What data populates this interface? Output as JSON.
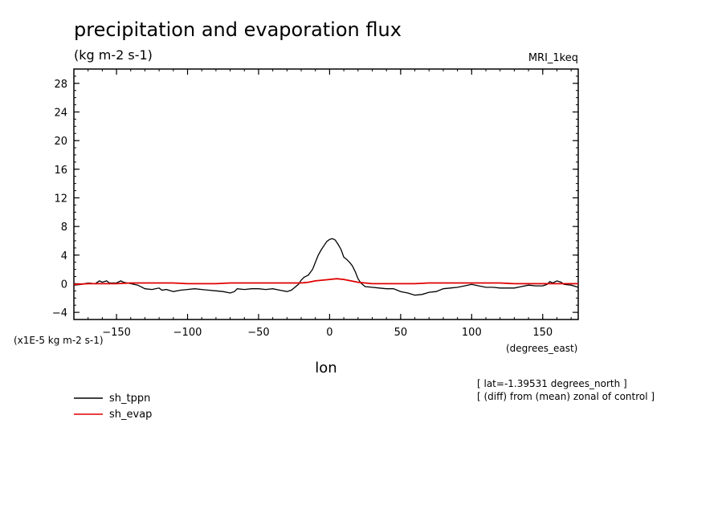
{
  "chart_data": {
    "type": "line",
    "title": "precipitation and evaporation flux",
    "subtitle": "(kg m-2 s-1)",
    "dataset_label": "MRI_1keq",
    "xlabel": "lon",
    "xunits": "(degrees_east)",
    "yunits": "(x1E-5 kg m-2 s-1)",
    "xlim": [
      -180,
      175
    ],
    "ylim": [
      -5,
      30
    ],
    "xticks": [
      -150,
      -100,
      -50,
      0,
      50,
      100,
      150
    ],
    "yticks": [
      -4,
      0,
      4,
      8,
      12,
      16,
      20,
      24,
      28
    ],
    "grid": false,
    "legend_position": "bottom-left",
    "notes": [
      "[ lat=-1.39531 degrees_north ]",
      "[ (diff) from (mean) zonal of control ]"
    ],
    "series": [
      {
        "name": "sh_tppn",
        "color": "#000000",
        "points": [
          [
            -180,
            -0.2
          ],
          [
            -175,
            -0.1
          ],
          [
            -170,
            0.1
          ],
          [
            -165,
            0.0
          ],
          [
            -162,
            0.4
          ],
          [
            -160,
            0.2
          ],
          [
            -157,
            0.4
          ],
          [
            -155,
            0.1
          ],
          [
            -150,
            0.1
          ],
          [
            -147,
            0.4
          ],
          [
            -145,
            0.2
          ],
          [
            -140,
            0.0
          ],
          [
            -135,
            -0.2
          ],
          [
            -130,
            -0.7
          ],
          [
            -125,
            -0.8
          ],
          [
            -120,
            -0.6
          ],
          [
            -118,
            -0.9
          ],
          [
            -115,
            -0.8
          ],
          [
            -110,
            -1.1
          ],
          [
            -105,
            -0.9
          ],
          [
            -100,
            -0.8
          ],
          [
            -95,
            -0.7
          ],
          [
            -90,
            -0.8
          ],
          [
            -85,
            -0.9
          ],
          [
            -80,
            -1.0
          ],
          [
            -75,
            -1.1
          ],
          [
            -70,
            -1.3
          ],
          [
            -67,
            -1.1
          ],
          [
            -65,
            -0.7
          ],
          [
            -60,
            -0.8
          ],
          [
            -55,
            -0.7
          ],
          [
            -50,
            -0.7
          ],
          [
            -45,
            -0.8
          ],
          [
            -40,
            -0.7
          ],
          [
            -35,
            -0.9
          ],
          [
            -30,
            -1.1
          ],
          [
            -27,
            -0.9
          ],
          [
            -25,
            -0.6
          ],
          [
            -22,
            -0.1
          ],
          [
            -20,
            0.5
          ],
          [
            -18,
            0.9
          ],
          [
            -15,
            1.2
          ],
          [
            -12,
            2.0
          ],
          [
            -10,
            3.0
          ],
          [
            -8,
            4.0
          ],
          [
            -6,
            4.7
          ],
          [
            -4,
            5.3
          ],
          [
            -2,
            5.9
          ],
          [
            0,
            6.2
          ],
          [
            2,
            6.3
          ],
          [
            4,
            6.1
          ],
          [
            6,
            5.5
          ],
          [
            8,
            4.8
          ],
          [
            10,
            3.7
          ],
          [
            12,
            3.4
          ],
          [
            14,
            3.0
          ],
          [
            16,
            2.5
          ],
          [
            18,
            1.7
          ],
          [
            20,
            0.7
          ],
          [
            22,
            0.1
          ],
          [
            25,
            -0.4
          ],
          [
            30,
            -0.5
          ],
          [
            35,
            -0.6
          ],
          [
            40,
            -0.7
          ],
          [
            45,
            -0.7
          ],
          [
            50,
            -1.1
          ],
          [
            55,
            -1.3
          ],
          [
            60,
            -1.6
          ],
          [
            65,
            -1.5
          ],
          [
            70,
            -1.2
          ],
          [
            75,
            -1.1
          ],
          [
            80,
            -0.7
          ],
          [
            85,
            -0.6
          ],
          [
            90,
            -0.5
          ],
          [
            95,
            -0.3
          ],
          [
            100,
            -0.1
          ],
          [
            105,
            -0.3
          ],
          [
            110,
            -0.5
          ],
          [
            115,
            -0.5
          ],
          [
            120,
            -0.6
          ],
          [
            125,
            -0.6
          ],
          [
            130,
            -0.6
          ],
          [
            135,
            -0.4
          ],
          [
            140,
            -0.2
          ],
          [
            145,
            -0.3
          ],
          [
            150,
            -0.3
          ],
          [
            153,
            -0.1
          ],
          [
            155,
            0.3
          ],
          [
            157,
            0.1
          ],
          [
            160,
            0.4
          ],
          [
            163,
            0.2
          ],
          [
            165,
            -0.1
          ],
          [
            170,
            -0.2
          ],
          [
            175,
            -0.5
          ]
        ]
      },
      {
        "name": "sh_evap",
        "color": "#e00000",
        "points": [
          [
            -180,
            -0.1
          ],
          [
            -170,
            0.0
          ],
          [
            -160,
            0.0
          ],
          [
            -150,
            0.0
          ],
          [
            -140,
            0.1
          ],
          [
            -130,
            0.1
          ],
          [
            -120,
            0.1
          ],
          [
            -110,
            0.1
          ],
          [
            -100,
            0.0
          ],
          [
            -90,
            0.0
          ],
          [
            -80,
            0.0
          ],
          [
            -70,
            0.1
          ],
          [
            -60,
            0.1
          ],
          [
            -50,
            0.1
          ],
          [
            -40,
            0.1
          ],
          [
            -30,
            0.1
          ],
          [
            -20,
            0.1
          ],
          [
            -15,
            0.2
          ],
          [
            -10,
            0.4
          ],
          [
            -5,
            0.5
          ],
          [
            0,
            0.6
          ],
          [
            5,
            0.7
          ],
          [
            10,
            0.6
          ],
          [
            15,
            0.4
          ],
          [
            20,
            0.2
          ],
          [
            25,
            0.1
          ],
          [
            30,
            0.0
          ],
          [
            40,
            0.0
          ],
          [
            50,
            0.0
          ],
          [
            60,
            0.0
          ],
          [
            70,
            0.1
          ],
          [
            80,
            0.1
          ],
          [
            90,
            0.1
          ],
          [
            100,
            0.1
          ],
          [
            110,
            0.1
          ],
          [
            120,
            0.1
          ],
          [
            130,
            0.0
          ],
          [
            140,
            0.0
          ],
          [
            150,
            0.0
          ],
          [
            160,
            0.0
          ],
          [
            170,
            0.0
          ],
          [
            175,
            0.0
          ]
        ]
      }
    ]
  }
}
